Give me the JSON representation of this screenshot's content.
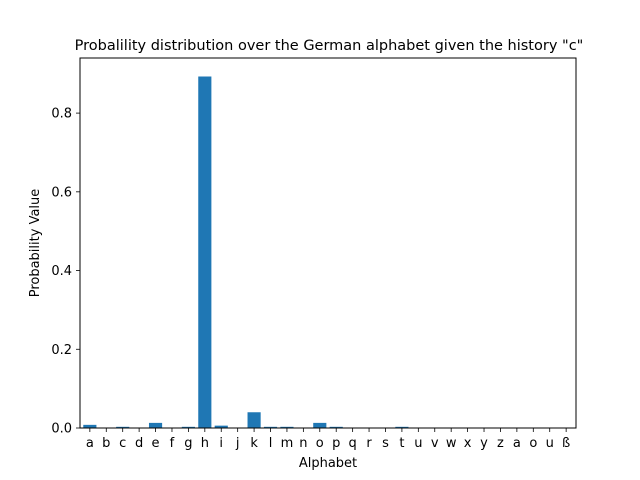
{
  "chart_data": {
    "type": "bar",
    "title": "Probalility distribution over the German alphabet given the history \"c\"",
    "xlabel": "Alphabet",
    "ylabel": "Probability Value",
    "categories": [
      "a",
      "b",
      "c",
      "d",
      "e",
      "f",
      "g",
      "h",
      "i",
      "j",
      "k",
      "l",
      "m",
      "n",
      "o",
      "p",
      "q",
      "r",
      "s",
      "t",
      "u",
      "v",
      "w",
      "x",
      "y",
      "z",
      "a",
      "o",
      "u",
      "ß"
    ],
    "values": [
      0.008,
      0.001,
      0.003,
      0.001,
      0.013,
      0.001,
      0.003,
      0.893,
      0.006,
      0.001,
      0.04,
      0.003,
      0.003,
      0.001,
      0.013,
      0.003,
      0.001,
      0.001,
      0.001,
      0.003,
      0.001,
      0.001,
      0.001,
      0.001,
      0.001,
      0.001,
      0.001,
      0.001,
      0.001,
      0.001
    ],
    "ylim": [
      0,
      0.94
    ],
    "yticks": [
      0.0,
      0.2,
      0.4,
      0.6,
      0.8
    ],
    "ytick_labels": [
      "0.0",
      "0.2",
      "0.4",
      "0.6",
      "0.8"
    ],
    "bar_color": "#1f77b4",
    "grid": false,
    "legend": "none"
  }
}
